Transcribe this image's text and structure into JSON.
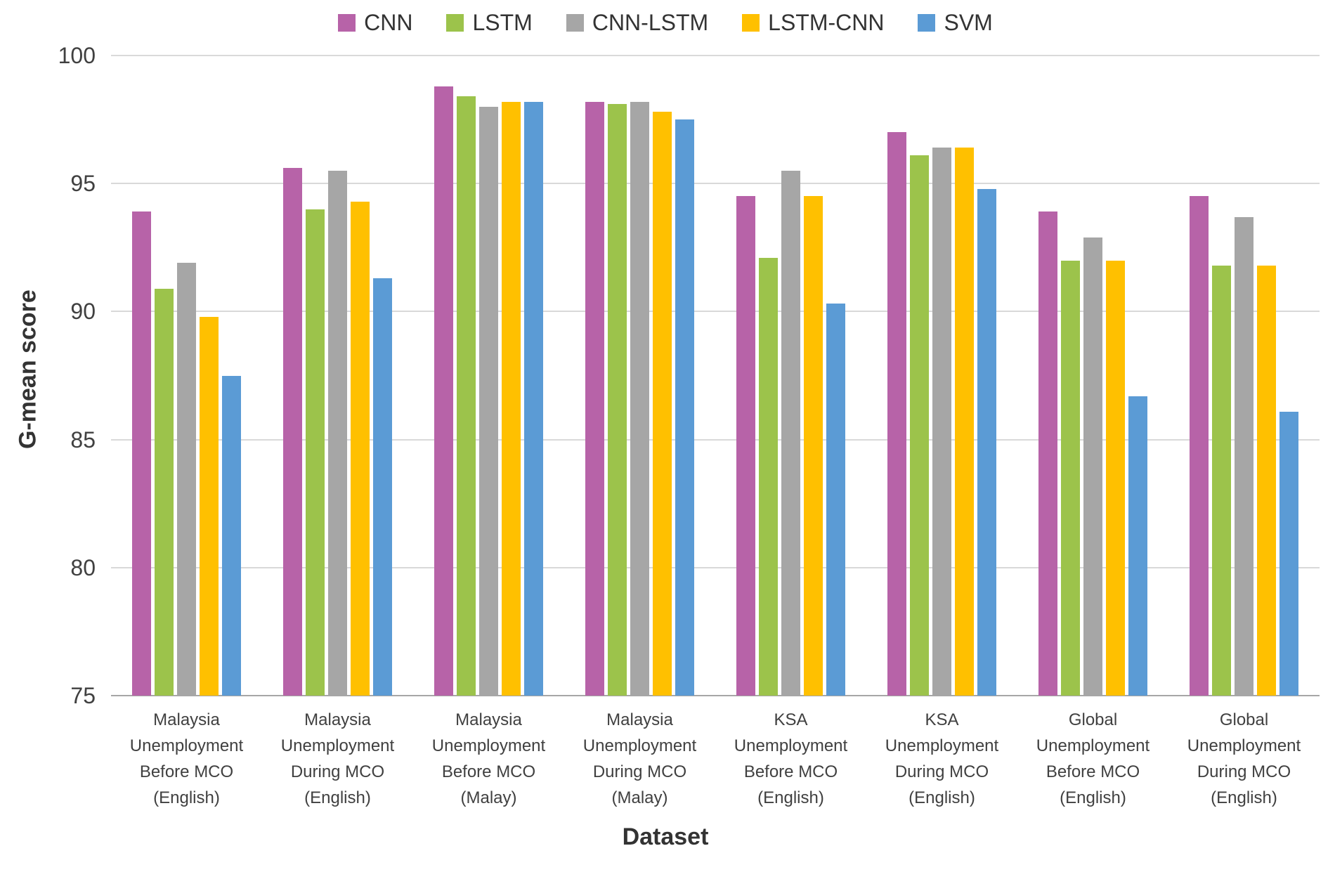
{
  "chart_data": {
    "type": "bar",
    "title": "",
    "xlabel": "Dataset",
    "ylabel": "G-mean score",
    "ylim": [
      75,
      100
    ],
    "yticks": [
      75,
      80,
      85,
      90,
      95,
      100
    ],
    "grid": true,
    "legend_position": "top",
    "background": "#ffffff",
    "gridline_color": "#d9d9d9",
    "categories": [
      "Malaysia\nUnemployment\nBefore MCO\n(English)",
      "Malaysia\nUnemployment\nDuring MCO\n(English)",
      "Malaysia\nUnemployment\nBefore MCO\n(Malay)",
      "Malaysia\nUnemployment\nDuring MCO\n(Malay)",
      "KSA\nUnemployment\nBefore MCO\n(English)",
      "KSA\nUnemployment\nDuring MCO\n(English)",
      "Global\nUnemployment\nBefore MCO\n(English)",
      "Global\nUnemployment\nDuring MCO\n(English)"
    ],
    "series": [
      {
        "name": "CNN",
        "color": "#b763a8",
        "values": [
          93.9,
          95.6,
          98.8,
          98.2,
          94.5,
          97.0,
          93.9,
          94.5
        ]
      },
      {
        "name": "LSTM",
        "color": "#9cc34b",
        "values": [
          90.9,
          94.0,
          98.4,
          98.1,
          92.1,
          96.1,
          92.0,
          91.8
        ]
      },
      {
        "name": "CNN-LSTM",
        "color": "#a6a6a6",
        "values": [
          91.9,
          95.5,
          98.0,
          98.2,
          95.5,
          96.4,
          92.9,
          93.7
        ]
      },
      {
        "name": "LSTM-CNN",
        "color": "#ffc000",
        "values": [
          89.8,
          94.3,
          98.2,
          97.8,
          94.5,
          96.4,
          92.0,
          91.8
        ]
      },
      {
        "name": "SVM",
        "color": "#5b9bd5",
        "values": [
          87.5,
          91.3,
          98.2,
          97.5,
          90.3,
          94.8,
          86.7,
          86.1
        ]
      }
    ]
  }
}
